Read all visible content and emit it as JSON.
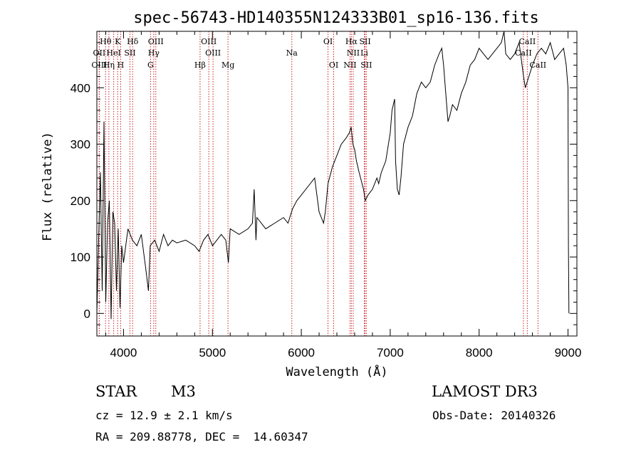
{
  "chart_data": {
    "type": "line",
    "title": "spec-56743-HD140355N124333B01_sp16-136.fits",
    "xlabel": "Wavelength (Å)",
    "ylabel": "Flux (relative)",
    "xlim": [
      3700,
      9100
    ],
    "ylim": [
      -40,
      500
    ],
    "xticks": [
      4000,
      5000,
      6000,
      7000,
      8000,
      9000
    ],
    "yticks": [
      0,
      100,
      200,
      300,
      400
    ],
    "series": [
      {
        "name": "flux",
        "x": [
          3700,
          3720,
          3740,
          3760,
          3780,
          3800,
          3820,
          3840,
          3860,
          3880,
          3900,
          3920,
          3940,
          3960,
          3980,
          4000,
          4050,
          4100,
          4150,
          4200,
          4250,
          4280,
          4300,
          4350,
          4400,
          4450,
          4500,
          4550,
          4600,
          4700,
          4800,
          4850,
          4900,
          4950,
          5000,
          5050,
          5100,
          5150,
          5180,
          5200,
          5300,
          5400,
          5450,
          5470,
          5490,
          5500,
          5600,
          5700,
          5800,
          5850,
          5900,
          5950,
          6000,
          6100,
          6150,
          6200,
          6250,
          6270,
          6300,
          6350,
          6400,
          6450,
          6500,
          6540,
          6560,
          6580,
          6600,
          6620,
          6650,
          6700,
          6720,
          6750,
          6800,
          6850,
          6870,
          6900,
          6950,
          7000,
          7020,
          7050,
          7060,
          7080,
          7100,
          7120,
          7150,
          7200,
          7250,
          7300,
          7350,
          7400,
          7450,
          7500,
          7550,
          7580,
          7600,
          7630,
          7650,
          7670,
          7700,
          7750,
          7800,
          7850,
          7900,
          7950,
          8000,
          8050,
          8100,
          8150,
          8200,
          8250,
          8280,
          8300,
          8350,
          8400,
          8450,
          8500,
          8520,
          8540,
          8560,
          8600,
          8650,
          8700,
          8750,
          8800,
          8850,
          8900,
          8950,
          8980,
          9000,
          9005,
          9010
        ],
        "y": [
          0,
          130,
          250,
          40,
          340,
          20,
          160,
          200,
          -10,
          180,
          160,
          40,
          150,
          10,
          120,
          90,
          150,
          130,
          120,
          140,
          80,
          40,
          120,
          130,
          110,
          140,
          120,
          130,
          125,
          130,
          120,
          110,
          130,
          140,
          120,
          130,
          140,
          130,
          90,
          150,
          140,
          150,
          160,
          220,
          130,
          170,
          150,
          160,
          170,
          160,
          185,
          200,
          210,
          230,
          240,
          180,
          160,
          180,
          230,
          260,
          280,
          300,
          310,
          320,
          330,
          300,
          290,
          270,
          250,
          220,
          200,
          210,
          220,
          240,
          230,
          250,
          270,
          320,
          360,
          380,
          270,
          220,
          210,
          240,
          300,
          330,
          350,
          390,
          410,
          400,
          410,
          440,
          460,
          470,
          440,
          380,
          340,
          350,
          370,
          360,
          390,
          410,
          440,
          450,
          470,
          460,
          450,
          460,
          470,
          480,
          500,
          460,
          450,
          460,
          480,
          420,
          400,
          410,
          420,
          440,
          460,
          470,
          460,
          480,
          450,
          460,
          470,
          440,
          400,
          120,
          0
        ]
      }
    ],
    "spectral_lines": [
      {
        "name": "Hθ",
        "wave": 3798,
        "row": 0
      },
      {
        "name": "K",
        "wave": 3934,
        "row": 0
      },
      {
        "name": "Hδ",
        "wave": 4102,
        "row": 0
      },
      {
        "name": "OIII",
        "wave": 4363,
        "row": 0
      },
      {
        "name": "OIII",
        "wave": 4959,
        "row": 0
      },
      {
        "name": "OI",
        "wave": 6300,
        "row": 0
      },
      {
        "name": "Hα",
        "wave": 6563,
        "row": 0
      },
      {
        "name": "SII",
        "wave": 6717,
        "row": 0
      },
      {
        "name": "CaII",
        "wave": 8542,
        "row": 0
      },
      {
        "name": "OII",
        "wave": 3727,
        "row": 1
      },
      {
        "name": "HeI",
        "wave": 3889,
        "row": 1
      },
      {
        "name": "SII",
        "wave": 4072,
        "row": 1
      },
      {
        "name": "Hγ",
        "wave": 4340,
        "row": 1
      },
      {
        "name": "OIII",
        "wave": 5007,
        "row": 1
      },
      {
        "name": "Na",
        "wave": 5893,
        "row": 1
      },
      {
        "name": "NII",
        "wave": 6584,
        "row": 1
      },
      {
        "name": "Li",
        "wave": 6708,
        "row": 1
      },
      {
        "name": "CaII",
        "wave": 8498,
        "row": 1
      },
      {
        "name": "OIII",
        "wave": 3727,
        "row": 2
      },
      {
        "name": "Hη",
        "wave": 3835,
        "row": 2
      },
      {
        "name": "H",
        "wave": 3968,
        "row": 2
      },
      {
        "name": "G",
        "wave": 4304,
        "row": 2
      },
      {
        "name": "Hβ",
        "wave": 4861,
        "row": 2
      },
      {
        "name": "Mg",
        "wave": 5175,
        "row": 2
      },
      {
        "name": "OI",
        "wave": 6364,
        "row": 2
      },
      {
        "name": "NII",
        "wave": 6548,
        "row": 2
      },
      {
        "name": "SII",
        "wave": 6731,
        "row": 2
      },
      {
        "name": "CaII",
        "wave": 8662,
        "row": 2
      }
    ]
  },
  "info": {
    "object_class": "STAR",
    "subclass": "M3",
    "survey": "LAMOST DR3",
    "redshift_line": "cz = 12.9 ± 2.1 km/s",
    "obs_date_line": "Obs-Date: 20140326",
    "coords_line": "RA = 209.88778, DEC =  14.60347"
  },
  "colors": {
    "spectrum": "#000000",
    "line_marker": "#cc2222"
  }
}
